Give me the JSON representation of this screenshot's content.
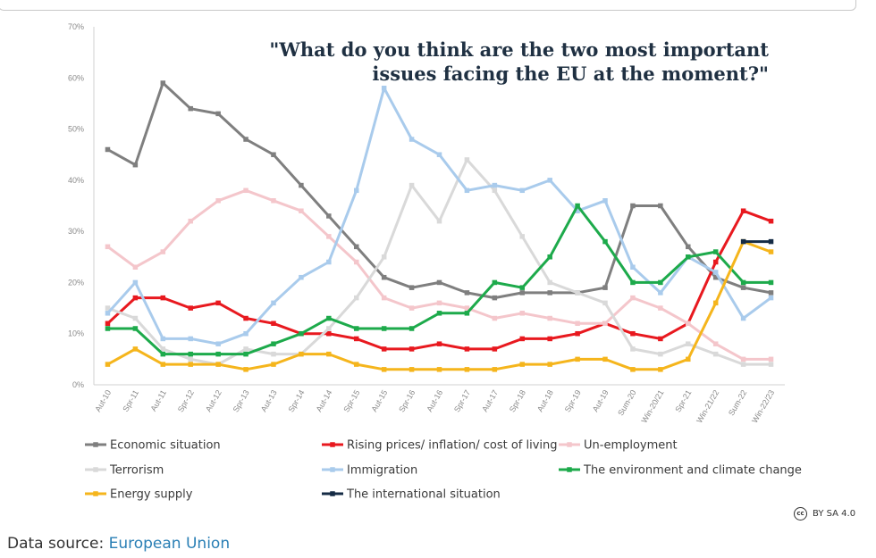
{
  "chart_data": {
    "type": "line",
    "title_lines": [
      "\"What do you think are the two most important",
      "issues facing the EU at the moment?\""
    ],
    "xlabel": "",
    "ylabel": "",
    "ylim": [
      0,
      70
    ],
    "y_ticks": [
      "0%",
      "10%",
      "20%",
      "30%",
      "40%",
      "50%",
      "60%",
      "70%"
    ],
    "categories": [
      "Aut-10",
      "Spr-11",
      "Aut-11",
      "Spr-12",
      "Aut-12",
      "Spr-13",
      "Aut-13",
      "Spr-14",
      "Aut-14",
      "Spr-15",
      "Aut-15",
      "Spr-16",
      "Aut-16",
      "Spr-17",
      "Aut-17",
      "Spr-18",
      "Aut-18",
      "Spr-19",
      "Aut-19",
      "Sum-20",
      "Win-20/21",
      "Spr-21",
      "Win-21/22",
      "Sum-22",
      "Win-22/23"
    ],
    "grid": false,
    "legend_position": "bottom",
    "series": [
      {
        "name": "Economic situation",
        "color": "#7f7f7f",
        "values": [
          46,
          43,
          59,
          54,
          53,
          48,
          45,
          39,
          33,
          27,
          21,
          19,
          20,
          18,
          17,
          18,
          18,
          18,
          19,
          35,
          35,
          27,
          21,
          19,
          18
        ]
      },
      {
        "name": "Rising prices/ inflation/ cost of living",
        "color": "#e8191f",
        "values": [
          12,
          17,
          17,
          15,
          16,
          13,
          12,
          10,
          10,
          9,
          7,
          7,
          8,
          7,
          7,
          9,
          9,
          10,
          12,
          10,
          9,
          12,
          24,
          34,
          32
        ]
      },
      {
        "name": "Un-employment",
        "color": "#f4c6cb",
        "values": [
          27,
          23,
          26,
          32,
          36,
          38,
          36,
          34,
          29,
          24,
          17,
          15,
          16,
          15,
          13,
          14,
          13,
          12,
          12,
          17,
          15,
          12,
          8,
          5,
          5
        ]
      },
      {
        "name": "Terrorism",
        "color": "#d9d9d9",
        "values": [
          15,
          13,
          7,
          5,
          4,
          7,
          6,
          6,
          11,
          17,
          25,
          39,
          32,
          44,
          38,
          29,
          20,
          18,
          16,
          7,
          6,
          8,
          6,
          4,
          4
        ]
      },
      {
        "name": "Immigration",
        "color": "#a9cbec",
        "values": [
          14,
          20,
          9,
          9,
          8,
          10,
          16,
          21,
          24,
          38,
          58,
          48,
          45,
          38,
          39,
          38,
          40,
          34,
          36,
          23,
          18,
          25,
          22,
          13,
          17
        ]
      },
      {
        "name": "The environment and climate change",
        "color": "#1daa4b",
        "values": [
          11,
          11,
          6,
          6,
          6,
          6,
          8,
          10,
          13,
          11,
          11,
          11,
          14,
          14,
          20,
          19,
          25,
          35,
          28,
          20,
          20,
          25,
          26,
          20,
          20
        ]
      },
      {
        "name": "Energy supply",
        "color": "#f5b51c",
        "values": [
          4,
          7,
          4,
          4,
          4,
          3,
          4,
          6,
          6,
          4,
          3,
          3,
          3,
          3,
          3,
          4,
          4,
          5,
          5,
          3,
          3,
          5,
          16,
          28,
          26
        ]
      },
      {
        "name": "The international situation",
        "color": "#152b45",
        "values": [
          null,
          null,
          null,
          null,
          null,
          null,
          null,
          null,
          null,
          null,
          null,
          null,
          null,
          null,
          null,
          null,
          null,
          null,
          null,
          null,
          null,
          null,
          null,
          28,
          28
        ]
      }
    ]
  },
  "footer": {
    "license_icon": "cc",
    "license_text": "BY SA 4.0",
    "source_label": "Data source: ",
    "source_link": "European Union"
  }
}
